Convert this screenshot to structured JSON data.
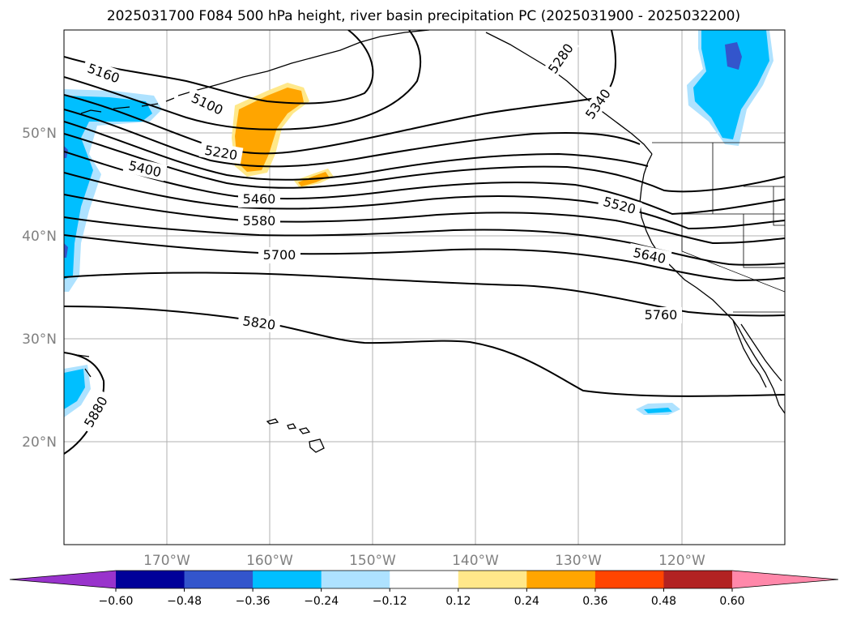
{
  "title": "2025031700 F084 500 hPa height, river basin precipitation PC (2025031900 - 2025032200)",
  "map": {
    "projection": "PlateCarree",
    "lon_range": [
      -180,
      -110
    ],
    "lat_range": [
      10,
      60
    ],
    "lat_ticks": [
      "20°N",
      "30°N",
      "40°N",
      "50°N"
    ],
    "lon_ticks": [
      "170°W",
      "160°W",
      "150°W",
      "140°W",
      "130°W",
      "120°W"
    ],
    "gridlines": true
  },
  "contours": {
    "variable": "500 hPa height",
    "labels": [
      "5160",
      "5100",
      "5220",
      "5400",
      "5460",
      "5580",
      "5700",
      "5820",
      "5880",
      "5520",
      "5640",
      "5760",
      "5280",
      "5340"
    ]
  },
  "shading": {
    "variable": "river basin precipitation PC",
    "colorbar_ticks": [
      "−0.60",
      "−0.48",
      "−0.36",
      "−0.24",
      "−0.12",
      "0.12",
      "0.24",
      "0.36",
      "0.48",
      "0.60"
    ],
    "colors": [
      "#9933cc",
      "#000099",
      "#3355cc",
      "#00bfff",
      "#aee2ff",
      "#ffffff",
      "#ffe88a",
      "#ffa500",
      "#ff4500",
      "#b22222",
      "#ff88aa"
    ],
    "extend": "both"
  }
}
